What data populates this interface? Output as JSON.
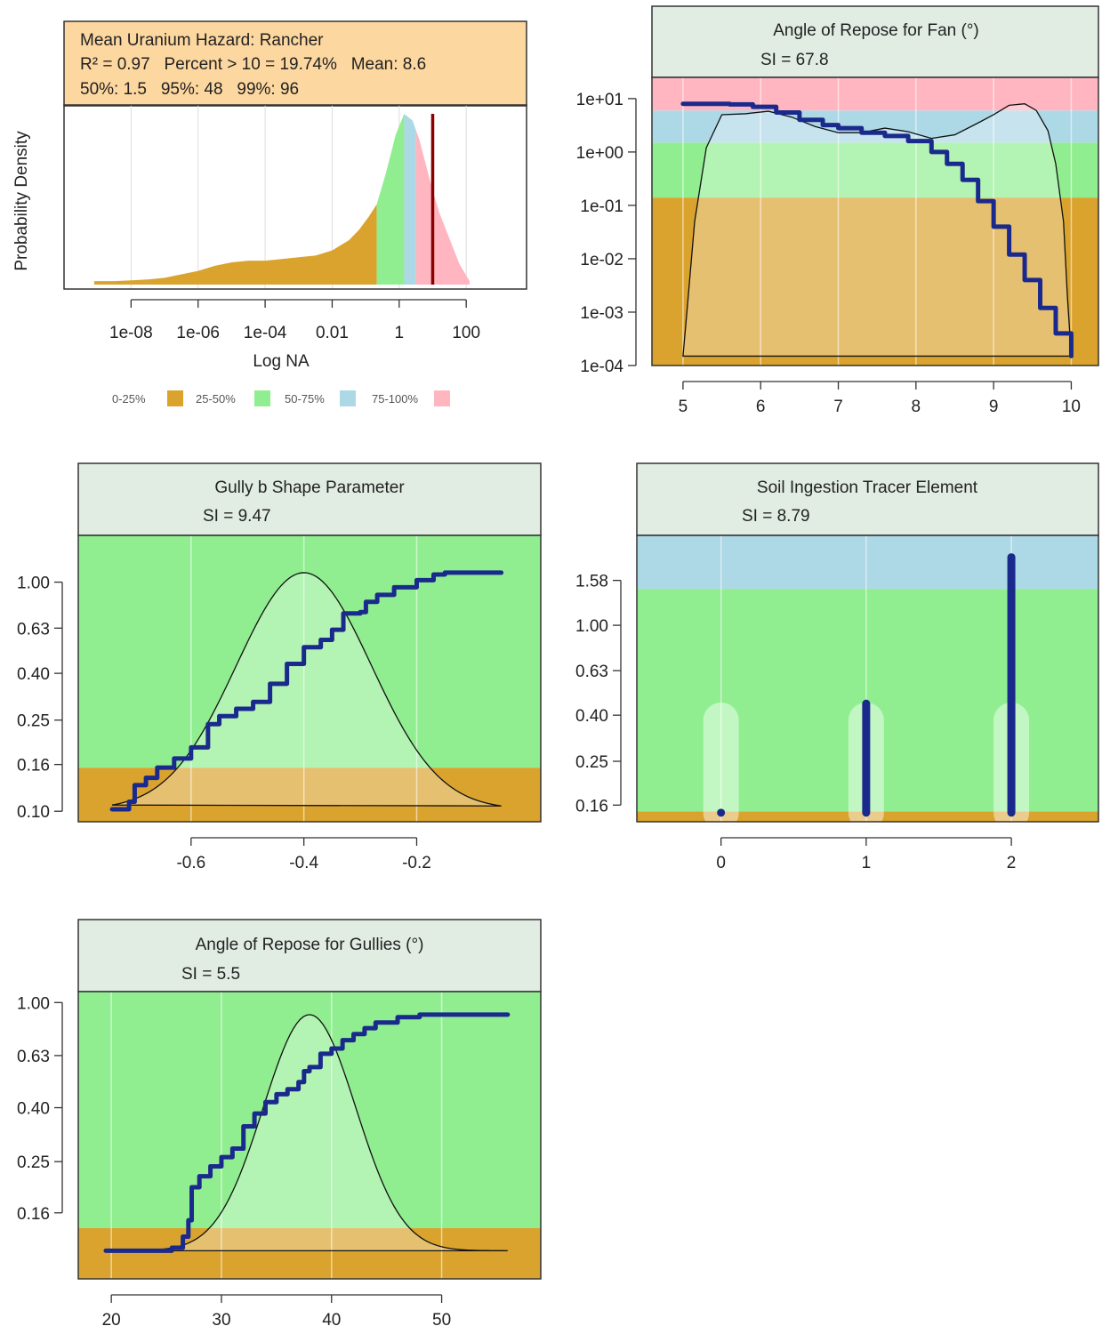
{
  "colors": {
    "q1": "#DAA32E",
    "q2": "#90EE90",
    "q3": "#ADD8E6",
    "q4": "#FFB6C1",
    "header_orange": "#FDD7A0",
    "header_gray": "#E1EDE3",
    "ecdf": "#1A2A8C",
    "median_line": "#8B0000"
  },
  "chart_data": [
    {
      "id": "hazard",
      "type": "area",
      "title": "Mean Uranium Hazard: Rancher",
      "stats_line1": "R² = 0.97   Percent > 10 = 19.74%   Mean: 8.6",
      "stats_line2": "50%: 1.5   95%: 48   99%: 96",
      "xlabel": "Log NA",
      "ylabel": "Probability Density",
      "x_scale": "log10",
      "xlim": [
        -10.0,
        3.8
      ],
      "x_ticks": [
        -8,
        -6,
        -4,
        -2,
        0,
        2
      ],
      "x_tick_labels": [
        "1e-08",
        "1e-06",
        "1e-04",
        "0.01",
        "1",
        "100"
      ],
      "median_marker_x": 10,
      "quartile_breaks_log10": [
        -0.67,
        0.15,
        0.5
      ],
      "density": {
        "x": [
          -9.1,
          -8.5,
          -8.0,
          -7.5,
          -7.0,
          -6.5,
          -6.0,
          -5.5,
          -5.0,
          -4.5,
          -4.0,
          -3.5,
          -3.0,
          -2.5,
          -2.0,
          -1.5,
          -1.2,
          -0.9,
          -0.67,
          -0.4,
          -0.1,
          0.15,
          0.4,
          0.6,
          0.8,
          1.0,
          1.2,
          1.5,
          1.8,
          2.1
        ],
        "y": [
          0.02,
          0.02,
          0.025,
          0.03,
          0.04,
          0.06,
          0.08,
          0.11,
          0.13,
          0.14,
          0.14,
          0.15,
          0.16,
          0.17,
          0.2,
          0.26,
          0.32,
          0.4,
          0.47,
          0.65,
          0.88,
          1.0,
          0.96,
          0.85,
          0.7,
          0.55,
          0.42,
          0.27,
          0.12,
          0.02
        ]
      },
      "legend": [
        {
          "label": "0-25%",
          "color_key": "q1"
        },
        {
          "label": "25-50%",
          "color_key": "q2"
        },
        {
          "label": "50-75%",
          "color_key": "q3"
        },
        {
          "label": "75-100%",
          "color_key": "q4"
        }
      ]
    },
    {
      "id": "fan",
      "type": "line",
      "title": "Angle of Repose for Fan (°)",
      "si": "SI = 67.8",
      "y_scale": "log10",
      "xlim": [
        4.6,
        10.35
      ],
      "ylim": [
        0.0001,
        25
      ],
      "x_ticks": [
        5,
        6,
        7,
        8,
        9,
        10
      ],
      "x_tick_labels": [
        "5",
        "6",
        "7",
        "8",
        "9",
        "10"
      ],
      "y_ticks": [
        10,
        1,
        0.1,
        0.01,
        0.001,
        0.0001
      ],
      "y_tick_labels": [
        "1e+01",
        "1e+00",
        "1e-01",
        "1e-02",
        "1e-03",
        "1e-04"
      ],
      "bands": [
        {
          "from": 0.0001,
          "to": 0.14,
          "color_key": "q1"
        },
        {
          "from": 0.14,
          "to": 1.5,
          "color_key": "q2"
        },
        {
          "from": 1.5,
          "to": 6,
          "color_key": "q3"
        },
        {
          "from": 6,
          "to": 25,
          "color_key": "q4"
        }
      ],
      "ecdf": {
        "x": [
          5.0,
          5.3,
          5.6,
          5.9,
          6.2,
          6.5,
          6.8,
          7.0,
          7.3,
          7.6,
          7.9,
          8.2,
          8.4,
          8.6,
          8.8,
          9.0,
          9.2,
          9.4,
          9.6,
          9.8,
          10.0
        ],
        "y": [
          8.0,
          8.0,
          7.8,
          7.0,
          5.5,
          4.0,
          3.2,
          2.8,
          2.3,
          2.0,
          1.6,
          1.0,
          0.6,
          0.3,
          0.12,
          0.04,
          0.012,
          0.004,
          0.0012,
          0.0004,
          0.00015
        ]
      },
      "density": {
        "x": [
          5.0,
          5.05,
          5.15,
          5.3,
          5.5,
          5.8,
          6.1,
          6.4,
          6.7,
          7.0,
          7.3,
          7.6,
          7.9,
          8.2,
          8.5,
          8.8,
          9.0,
          9.2,
          9.4,
          9.55,
          9.7,
          9.8,
          9.9,
          9.95,
          10.0
        ],
        "y": [
          0.00015,
          0.001,
          0.05,
          1.2,
          5.0,
          5.2,
          5.8,
          4.5,
          3.0,
          2.3,
          2.3,
          2.8,
          2.4,
          1.8,
          2.1,
          3.5,
          5.0,
          7.5,
          8.0,
          6.0,
          2.5,
          0.6,
          0.05,
          0.002,
          0.00015
        ]
      }
    },
    {
      "id": "gully_b",
      "type": "line",
      "title": "Gully b Shape Parameter",
      "si": "SI = 9.47",
      "y_scale": "log10",
      "xlim": [
        -0.8,
        0.02
      ],
      "ylim": [
        0.09,
        1.6
      ],
      "x_ticks": [
        -0.6,
        -0.4,
        -0.2
      ],
      "x_tick_labels": [
        "-0.6",
        "-0.4",
        "-0.2"
      ],
      "y_ticks": [
        1.0,
        0.63,
        0.4,
        0.25,
        0.16,
        0.1
      ],
      "y_tick_labels": [
        "1.00",
        "0.63",
        "0.40",
        "0.25",
        "0.16",
        "0.10"
      ],
      "bands": [
        {
          "from": 0.09,
          "to": 0.155,
          "color_key": "q1"
        },
        {
          "from": 0.155,
          "to": 1.6,
          "color_key": "q2"
        }
      ],
      "ecdf": {
        "x": [
          -0.74,
          -0.72,
          -0.71,
          -0.7,
          -0.68,
          -0.66,
          -0.63,
          -0.6,
          -0.57,
          -0.55,
          -0.52,
          -0.49,
          -0.46,
          -0.43,
          -0.4,
          -0.37,
          -0.35,
          -0.33,
          -0.3,
          -0.29,
          -0.27,
          -0.24,
          -0.2,
          -0.17,
          -0.15,
          -0.05
        ],
        "y": [
          0.102,
          0.102,
          0.11,
          0.13,
          0.14,
          0.155,
          0.17,
          0.19,
          0.24,
          0.26,
          0.28,
          0.3,
          0.36,
          0.44,
          0.52,
          0.56,
          0.62,
          0.73,
          0.74,
          0.82,
          0.88,
          0.95,
          1.02,
          1.08,
          1.1,
          1.1
        ]
      },
      "density_curve": {
        "mean": -0.4,
        "sd": 0.12,
        "baseline": 0.102,
        "peak": 1.1,
        "x_from": -0.74,
        "x_to": -0.05
      }
    },
    {
      "id": "soil",
      "type": "scatter",
      "title": "Soil Ingestion Tracer Element",
      "si": "SI = 8.79",
      "y_scale": "log10",
      "xlim": [
        -0.58,
        2.6
      ],
      "ylim": [
        0.135,
        2.5
      ],
      "x_ticks": [
        0,
        1,
        2
      ],
      "x_tick_labels": [
        "0",
        "1",
        "2"
      ],
      "y_ticks": [
        1.58,
        1.0,
        0.63,
        0.4,
        0.25,
        0.16
      ],
      "y_tick_labels": [
        "1.58",
        "1.00",
        "0.63",
        "0.40",
        "0.25",
        "0.16"
      ],
      "bands": [
        {
          "from": 0.135,
          "to": 0.15,
          "color_key": "q1"
        },
        {
          "from": 0.15,
          "to": 1.45,
          "color_key": "q2"
        },
        {
          "from": 1.45,
          "to": 2.5,
          "color_key": "q3"
        }
      ],
      "categories": [
        0,
        1,
        2
      ],
      "ranges": [
        {
          "x": 0,
          "low": 0.148,
          "high": 0.148
        },
        {
          "x": 1,
          "low": 0.148,
          "high": 0.45
        },
        {
          "x": 2,
          "low": 0.148,
          "high": 2.0
        }
      ]
    },
    {
      "id": "gullies",
      "type": "line",
      "title": "Angle of Repose for Gullies (°)",
      "si": "SI = 5.5",
      "y_scale": "log10",
      "xlim": [
        17,
        59
      ],
      "ylim": [
        0.09,
        1.1
      ],
      "x_ticks": [
        20,
        30,
        40,
        50
      ],
      "x_tick_labels": [
        "20",
        "30",
        "40",
        "50"
      ],
      "y_ticks": [
        1.0,
        0.63,
        0.4,
        0.25,
        0.16
      ],
      "y_tick_labels": [
        "1.00",
        "0.63",
        "0.40",
        "0.25",
        "0.16"
      ],
      "bands": [
        {
          "from": 0.09,
          "to": 0.14,
          "color_key": "q1"
        },
        {
          "from": 0.14,
          "to": 1.1,
          "color_key": "q2"
        }
      ],
      "ecdf": {
        "x": [
          19.5,
          24,
          25.5,
          26.5,
          27,
          27.3,
          28,
          29,
          30,
          31,
          32,
          33,
          34,
          35,
          36,
          37,
          37.5,
          38,
          39,
          40,
          41,
          42,
          43,
          44,
          46,
          48,
          50,
          56
        ],
        "y": [
          0.115,
          0.115,
          0.118,
          0.13,
          0.15,
          0.2,
          0.22,
          0.24,
          0.26,
          0.28,
          0.34,
          0.38,
          0.42,
          0.45,
          0.47,
          0.5,
          0.55,
          0.57,
          0.64,
          0.67,
          0.72,
          0.76,
          0.8,
          0.84,
          0.88,
          0.9,
          0.9,
          0.9
        ]
      },
      "density_curve": {
        "mean": 38,
        "sd": 4.2,
        "baseline": 0.115,
        "peak": 0.9,
        "x_from": 19.5,
        "x_to": 56
      }
    }
  ]
}
